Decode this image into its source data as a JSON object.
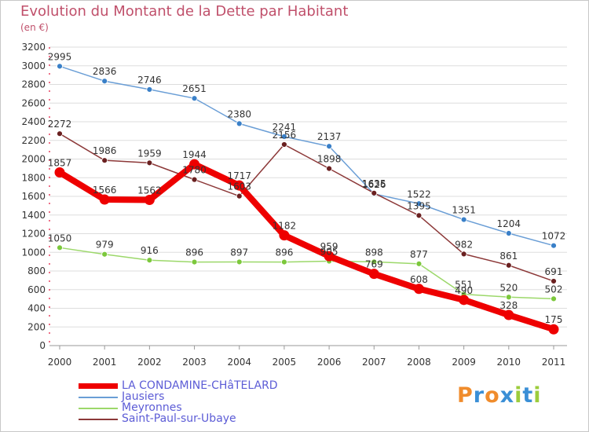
{
  "title": "Evolution du Montant de la Dette par Habitant",
  "subtitle": "(en €)",
  "colors": {
    "title": "#c0506b",
    "legend_text": "#5c5cd6",
    "grid": "#dddddd",
    "axis_red": "#e84060"
  },
  "logo": {
    "letters": [
      "P",
      "r",
      "o",
      "x",
      "i",
      "t",
      "i"
    ],
    "colors": [
      "#f08c2c",
      "#3a8fd6",
      "#f08c2c",
      "#3a8fd6",
      "#9ccc3c",
      "#3a8fd6",
      "#9ccc3c"
    ]
  },
  "chart_data": {
    "type": "line",
    "title": "Evolution du Montant de la Dette par Habitant",
    "subtitle": "(en €)",
    "xlabel": "",
    "ylabel": "",
    "x": [
      "2000",
      "2001",
      "2002",
      "2003",
      "2004",
      "2005",
      "2006",
      "2007",
      "2008",
      "2009",
      "2010",
      "2011"
    ],
    "ylim": [
      0,
      3200
    ],
    "yticks": [
      0,
      200,
      400,
      600,
      800,
      1000,
      1200,
      1400,
      1600,
      1800,
      2000,
      2200,
      2400,
      2600,
      2800,
      3000,
      3200
    ],
    "grid": "horizontal",
    "legend_position": "bottom-left",
    "series": [
      {
        "name": "LA CONDAMINE-CHâTELARD",
        "color": "#ee0000",
        "width": "thick",
        "values": [
          1857,
          1566,
          1562,
          1944,
          1717,
          1182,
          959,
          769,
          608,
          490,
          328,
          175
        ],
        "labels": [
          "1857",
          "1566",
          "1562",
          "1944",
          "1717",
          "1182",
          "959",
          "769",
          "608",
          "490",
          "328",
          "175"
        ]
      },
      {
        "name": "Jausiers",
        "color": "#6a9ed6",
        "dot": "#3a80c8",
        "width": "thin",
        "values": [
          2995,
          2836,
          2746,
          2651,
          2380,
          2241,
          2137,
          1626,
          1522,
          1351,
          1204,
          1072
        ],
        "labels": [
          "2995",
          "2836",
          "2746",
          "2651",
          "2380",
          "2241",
          "2137",
          "1626",
          "1522",
          "1351",
          "1204",
          "1072"
        ]
      },
      {
        "name": "Meyronnes",
        "color": "#9cd86a",
        "dot": "#7cc83c",
        "width": "thin",
        "values": [
          1050,
          979,
          916,
          896,
          897,
          896,
          905,
          898,
          877,
          551,
          520,
          502
        ],
        "labels": [
          "1050",
          "979",
          "916",
          "896",
          "897",
          "896",
          "905",
          "898",
          "877",
          "551",
          "520",
          "502"
        ]
      },
      {
        "name": "Saint-Paul-sur-Ubaye",
        "color": "#8c3838",
        "dot": "#6a2020",
        "width": "thin",
        "values": [
          2272,
          1986,
          1959,
          1780,
          1603,
          2156,
          1898,
          1635,
          1395,
          982,
          861,
          691
        ],
        "labels": [
          "2272",
          "1986",
          "1959",
          "1780",
          "1603",
          "2156",
          "1898",
          "1635",
          "1395",
          "982",
          "861",
          "691"
        ]
      }
    ]
  }
}
